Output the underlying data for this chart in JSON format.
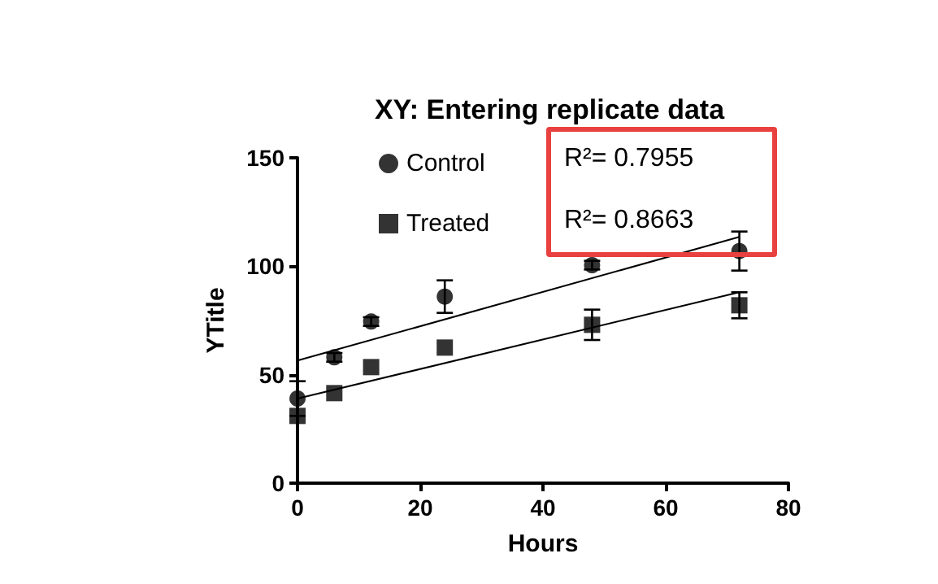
{
  "chart_data": {
    "type": "scatter",
    "title": "XY: Entering replicate data",
    "xlabel": "Hours",
    "ylabel": "YTitle",
    "xlim": [
      0,
      80
    ],
    "xticks": [
      0,
      20,
      40,
      60,
      80
    ],
    "ylim": [
      0,
      150
    ],
    "yticks": [
      0,
      50,
      100,
      150
    ],
    "grid": false,
    "legend": "top",
    "annotations": [
      "R²= 0.7955",
      "R²= 0.8663"
    ],
    "series": [
      {
        "name": "Control",
        "color": "#000000",
        "marker": "circle",
        "x": [
          0,
          6,
          12,
          24,
          48,
          72
        ],
        "values": [
          39,
          58,
          74.5,
          86,
          100.5,
          107
        ],
        "errors": [
          8,
          2,
          2,
          7.5,
          2,
          9
        ]
      },
      {
        "name": "Treated",
        "color": "#000000",
        "marker": "square",
        "x": [
          0,
          6,
          12,
          24,
          48,
          72
        ],
        "values": [
          31,
          41.5,
          53.5,
          62.5,
          73,
          82
        ],
        "errors": [
          null,
          null,
          null,
          null,
          7,
          6
        ]
      },
      {
        "type": "line",
        "color": "#000000",
        "marker": "none",
        "x": [
          0,
          72
        ],
        "values": [
          56.5,
          113.5
        ]
      },
      {
        "type": "line",
        "color": "#000000",
        "marker": "none",
        "x": [
          0,
          72
        ],
        "values": [
          39,
          88
        ]
      }
    ]
  }
}
